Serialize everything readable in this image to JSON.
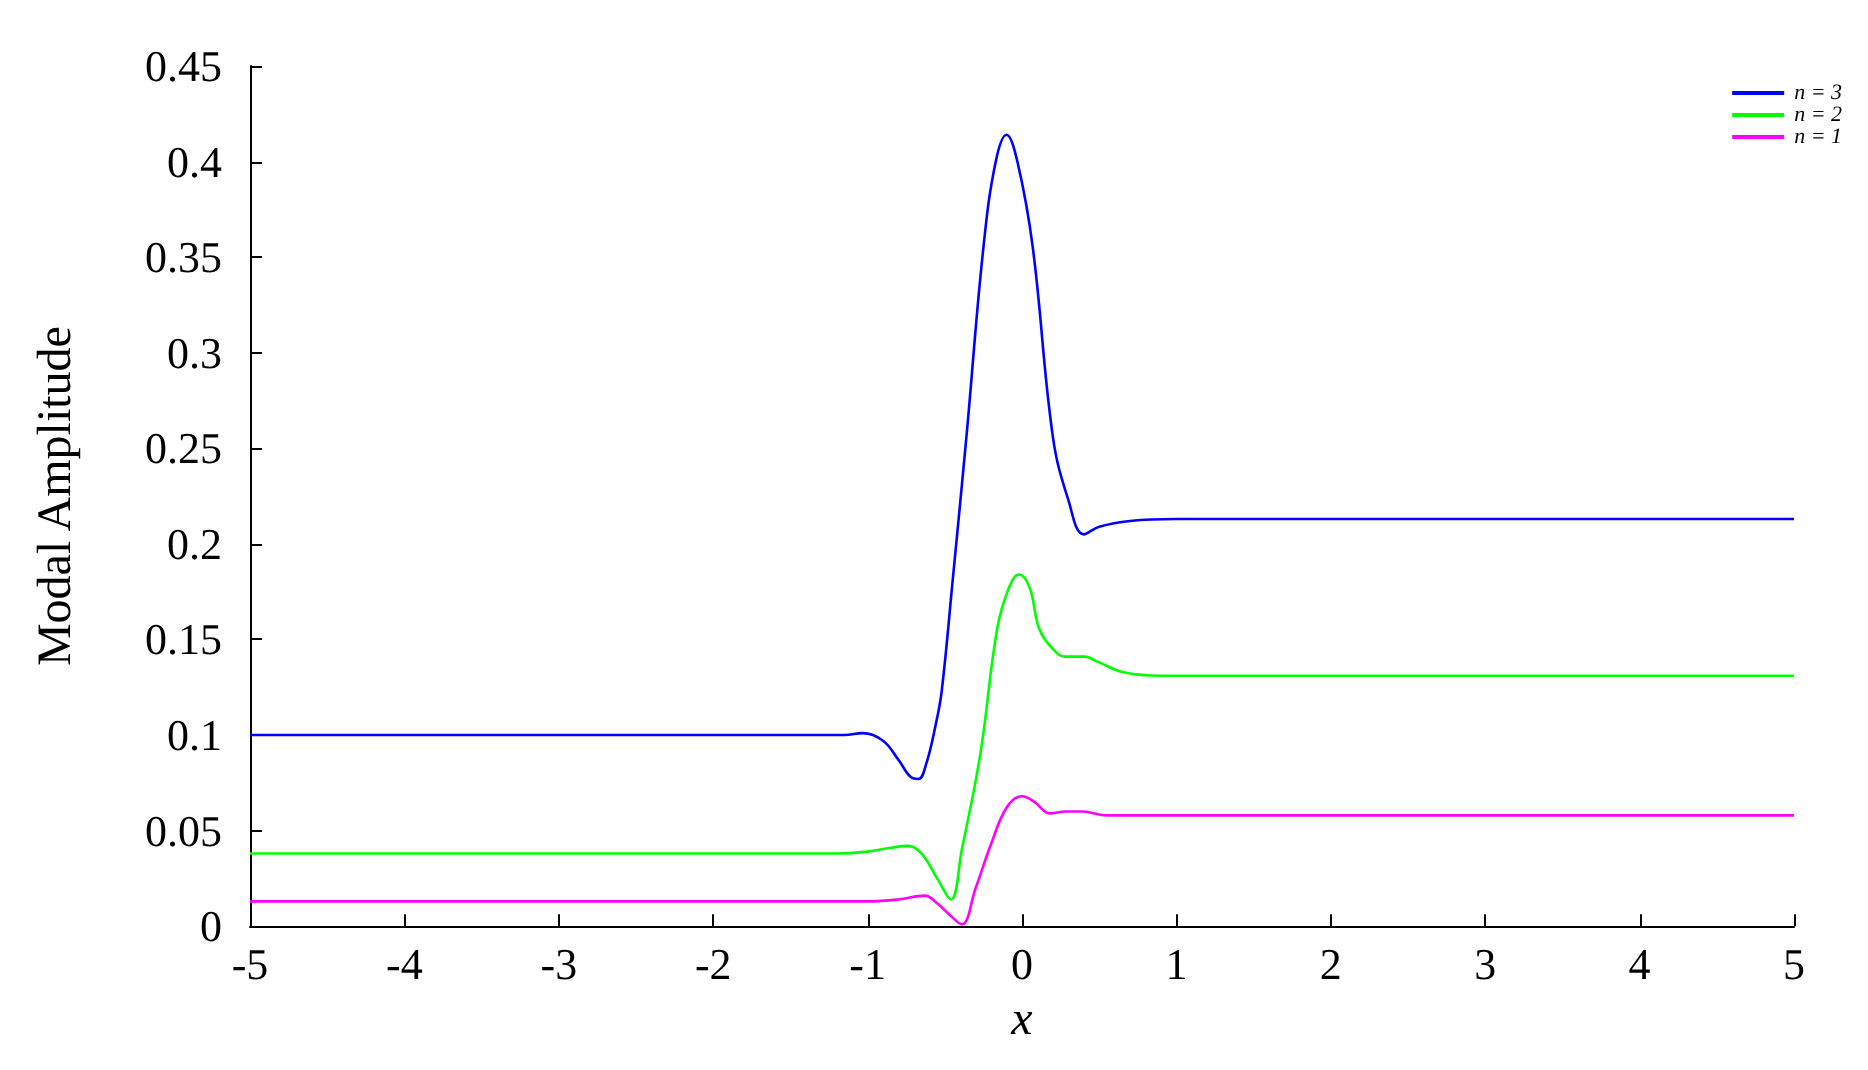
{
  "chart_data": {
    "type": "line",
    "xlabel": "x",
    "ylabel": "Modal Amplitude",
    "xlim": [
      -5,
      5
    ],
    "xticks": [
      -5,
      -4,
      -3,
      -2,
      -1,
      0,
      1,
      2,
      3,
      4,
      5
    ],
    "ylim": [
      0,
      0.45
    ],
    "yticks": [
      0,
      0.05,
      0.1,
      0.15,
      0.2,
      0.25,
      0.3,
      0.35,
      0.4,
      0.45
    ],
    "grid": false,
    "legend": "top right",
    "marker": "none",
    "line_style": "solid",
    "series": [
      {
        "name": "n = 3",
        "color": "#0000ff",
        "x": [
          -5,
          -2,
          -1.3,
          -1.15,
          -1.03,
          -0.9,
          -0.8,
          -0.72,
          -0.67,
          -0.62,
          -0.56,
          -0.52,
          -0.45,
          -0.36,
          -0.25,
          -0.17,
          -0.1,
          -0.03,
          0.07,
          0.2,
          0.3,
          0.4,
          0.5,
          0.7,
          1,
          5
        ],
        "values": [
          0.1,
          0.1,
          0.1,
          0.1,
          0.101,
          0.097,
          0.087,
          0.078,
          0.077,
          0.085,
          0.105,
          0.123,
          0.18,
          0.256,
          0.355,
          0.4,
          0.414,
          0.4,
          0.355,
          0.256,
          0.223,
          0.205,
          0.209,
          0.212,
          0.213,
          0.213
        ]
      },
      {
        "name": "n = 2",
        "color": "#00ff00",
        "x": [
          -5,
          -1.2,
          -1,
          -0.85,
          -0.74,
          -0.65,
          -0.55,
          -0.46,
          -0.39,
          -0.27,
          -0.16,
          -0.08,
          -0.02,
          0.05,
          0.11,
          0.2,
          0.28,
          0.4,
          0.5,
          0.65,
          0.9,
          5
        ],
        "values": [
          0.038,
          0.038,
          0.039,
          0.041,
          0.042,
          0.038,
          0.025,
          0.014,
          0.04,
          0.09,
          0.156,
          0.178,
          0.184,
          0.177,
          0.156,
          0.145,
          0.141,
          0.141,
          0.138,
          0.133,
          0.131,
          0.131
        ]
      },
      {
        "name": "n = 1",
        "color": "#ff00ff",
        "x": [
          -5,
          -1,
          -0.8,
          -0.63,
          -0.55,
          -0.47,
          -0.39,
          -0.3,
          -0.2,
          -0.1,
          0,
          0.08,
          0.18,
          0.28,
          0.39,
          0.55,
          0.8,
          5
        ],
        "values": [
          0.013,
          0.013,
          0.014,
          0.016,
          0.012,
          0.006,
          0.001,
          0.02,
          0.043,
          0.062,
          0.068,
          0.065,
          0.059,
          0.06,
          0.06,
          0.058,
          0.058,
          0.058
        ]
      }
    ]
  }
}
